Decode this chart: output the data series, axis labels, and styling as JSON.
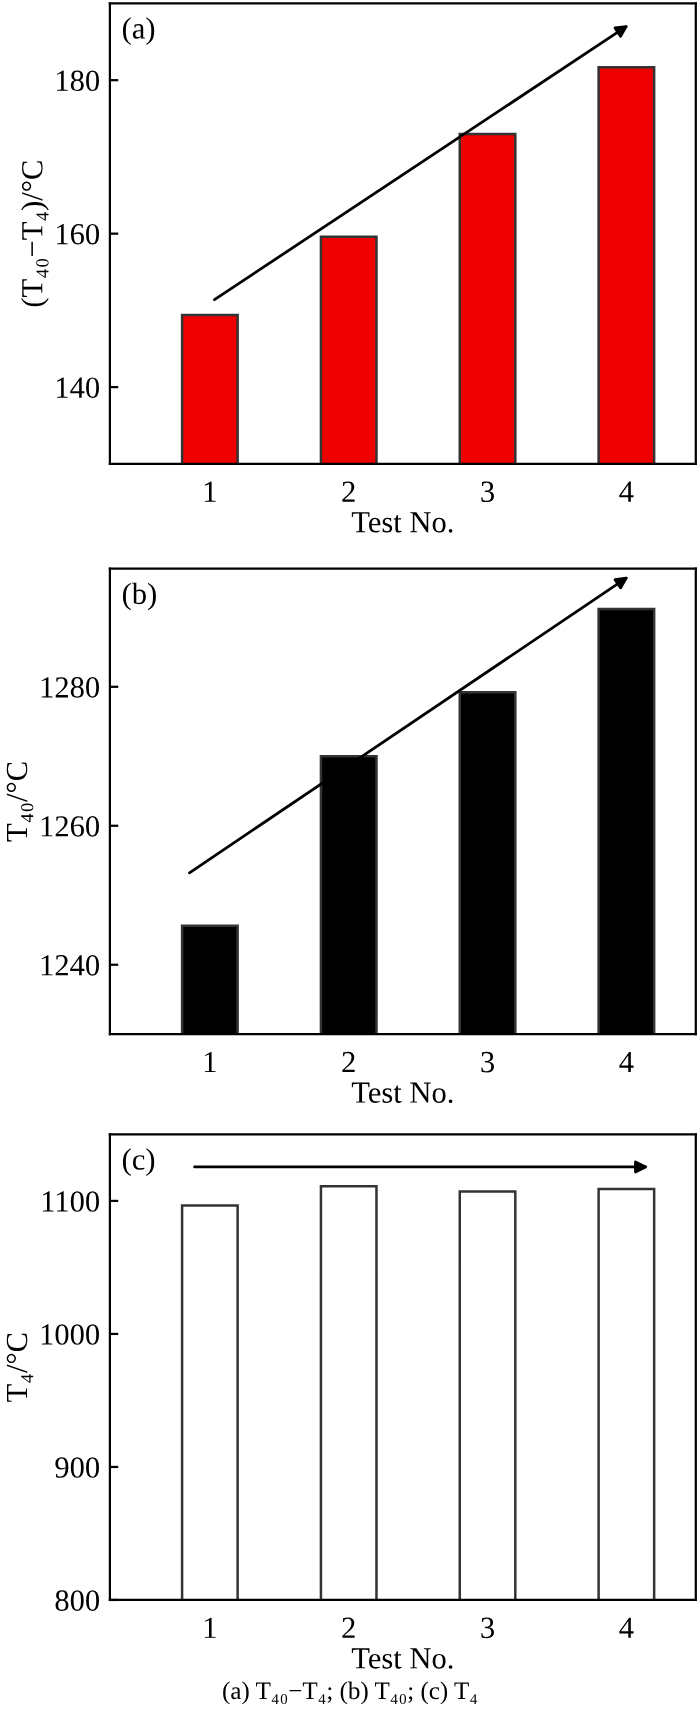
{
  "chart_data": [
    {
      "type": "bar",
      "title": "(a)",
      "xlabel": "Test No.",
      "ylabel": "(T₄₀−T₄)/°C",
      "categories": [
        "1",
        "2",
        "3",
        "4"
      ],
      "values": [
        149.4,
        159.6,
        173.0,
        181.7
      ],
      "color": "#ee0000",
      "ylim": [
        130,
        190
      ],
      "yticks": [
        140,
        160,
        180
      ],
      "grid": false,
      "legend": false
    },
    {
      "type": "bar",
      "title": "(b)",
      "xlabel": "Test No.",
      "ylabel": "T₄₀/°C",
      "categories": [
        "1",
        "2",
        "3",
        "4"
      ],
      "values": [
        1245.6,
        1270,
        1279.2,
        1291.2
      ],
      "color": "#000000",
      "ylim": [
        1230,
        1297
      ],
      "yticks": [
        1240,
        1260,
        1280
      ],
      "grid": false,
      "legend": false
    },
    {
      "type": "bar",
      "title": "(c)",
      "xlabel": "Test No.",
      "ylabel": "T₄/°C",
      "categories": [
        "1",
        "2",
        "3",
        "4"
      ],
      "values": [
        1096.5,
        1111,
        1107,
        1109
      ],
      "color": "#ffffff",
      "ylim": [
        800,
        1150
      ],
      "yticks": [
        800,
        900,
        1000,
        1100
      ],
      "grid": false,
      "legend": false,
      "annotations": [
        "(a) T₄₀−T₄; (b) T₄₀; (c) T₄"
      ]
    }
  ]
}
